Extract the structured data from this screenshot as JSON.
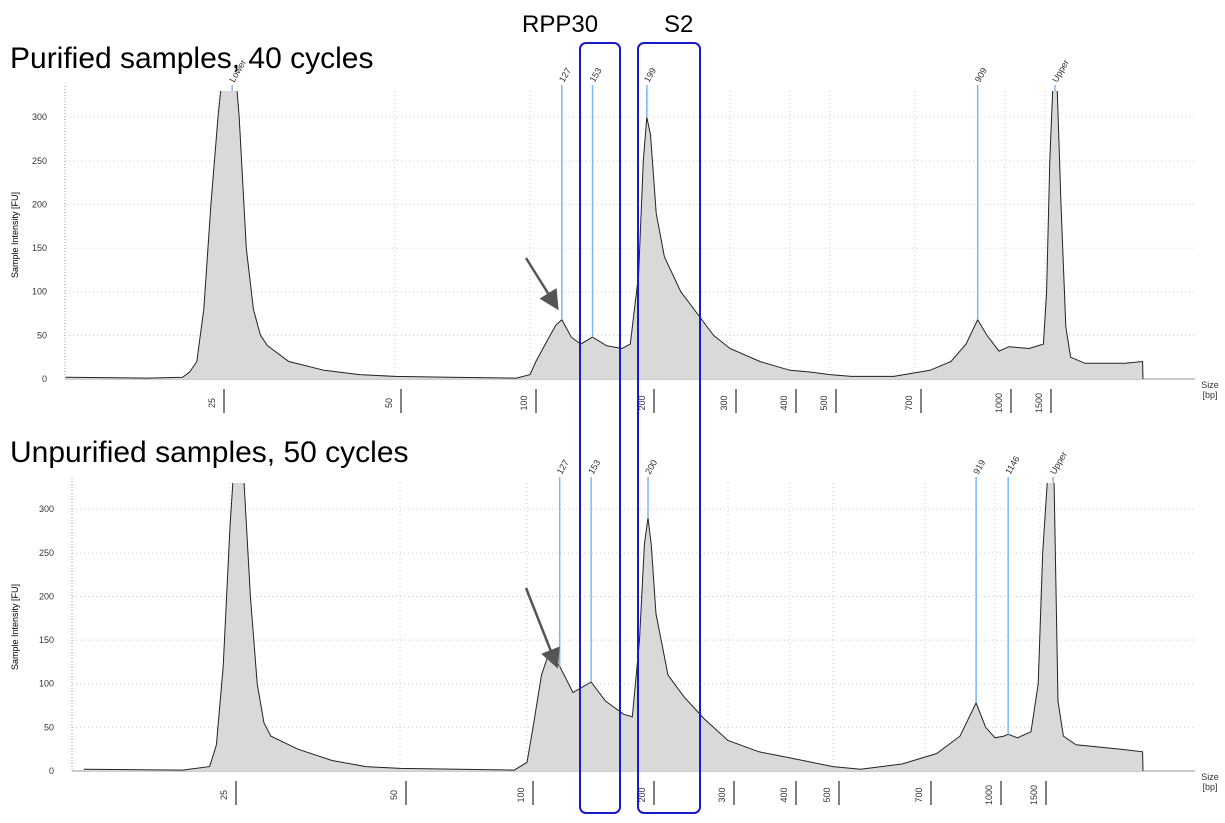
{
  "annotations": [
    "RPP30",
    "S2"
  ],
  "chart_data": [
    {
      "type": "area",
      "title": "Purified samples, 40 cycles",
      "y_label": "Sample Intensity [FU]",
      "x_label": [
        "Size",
        "[bp]"
      ],
      "ylim": [
        0,
        330
      ],
      "yticks": [
        0,
        50,
        100,
        150,
        200,
        250,
        300
      ],
      "xticks": [
        25,
        50,
        100,
        200,
        300,
        400,
        500,
        700,
        1000,
        1500
      ],
      "color": "#d9d9d9",
      "peak_color": "#7fb8f0",
      "grid": true,
      "peaks": [
        {
          "value": 27,
          "label": "Lower"
        },
        127,
        153,
        199,
        909,
        {
          "value": 1625,
          "label": "Upper"
        }
      ],
      "x": [
        3.5,
        15,
        20,
        21,
        22,
        23,
        24,
        25,
        26,
        27,
        28,
        29,
        30,
        31,
        32,
        35,
        40,
        45,
        50,
        70,
        95,
        100,
        105,
        115,
        122,
        127,
        135,
        143,
        153,
        165,
        178,
        185,
        192,
        196,
        199,
        203,
        210,
        220,
        240,
        260,
        280,
        300,
        350,
        400,
        450,
        500,
        550,
        650,
        750,
        820,
        870,
        909,
        940,
        980,
        1050,
        1300,
        1480,
        1520,
        1560,
        1600,
        1625,
        1650,
        1700,
        1760,
        1820,
        2000,
        2500,
        2720,
        2725
      ],
      "y": [
        2,
        1,
        2,
        8,
        20,
        80,
        200,
        300,
        380,
        400,
        300,
        150,
        80,
        50,
        38,
        20,
        10,
        5,
        3,
        2,
        1,
        5,
        20,
        45,
        62,
        68,
        48,
        40,
        48,
        38,
        35,
        40,
        120,
        250,
        300,
        280,
        190,
        140,
        100,
        75,
        50,
        35,
        20,
        10,
        8,
        5,
        3,
        3,
        10,
        20,
        40,
        68,
        50,
        32,
        37,
        35,
        40,
        100,
        250,
        340,
        400,
        340,
        200,
        60,
        25,
        18,
        18,
        20,
        0
      ]
    },
    {
      "type": "area",
      "title": "Unpurified samples, 50 cycles",
      "y_label": "Sample Intensity [FU]",
      "x_label": [
        "Size",
        "[bp]"
      ],
      "ylim": [
        0,
        330
      ],
      "yticks": [
        0,
        50,
        100,
        150,
        200,
        250,
        300
      ],
      "xticks": [
        25,
        50,
        100,
        200,
        300,
        400,
        500,
        700,
        1000,
        1500
      ],
      "color": "#d9d9d9",
      "peak_color": "#7fb8f0",
      "grid": true,
      "peaks": [
        127,
        153,
        200,
        919,
        1146,
        {
          "value": 1645,
          "label": "Upper"
        }
      ],
      "x": [
        3.5,
        18,
        22,
        23,
        24,
        25,
        26,
        27,
        28,
        29,
        30,
        31,
        35,
        40,
        45,
        50,
        95,
        100,
        105,
        112,
        118,
        127,
        138,
        153,
        165,
        180,
        187,
        193,
        197,
        200,
        204,
        210,
        225,
        245,
        270,
        300,
        350,
        400,
        450,
        500,
        560,
        650,
        750,
        850,
        919,
        960,
        1000,
        1100,
        1146,
        1250,
        1400,
        1480,
        1530,
        1580,
        1645,
        1700,
        1760,
        1900,
        2400,
        2640,
        2645
      ],
      "y": [
        2,
        1,
        5,
        30,
        120,
        280,
        400,
        340,
        200,
        100,
        55,
        40,
        25,
        12,
        5,
        3,
        1,
        10,
        50,
        110,
        135,
        120,
        90,
        102,
        80,
        65,
        62,
        150,
        260,
        290,
        260,
        180,
        110,
        85,
        60,
        35,
        22,
        15,
        10,
        5,
        2,
        8,
        20,
        40,
        78,
        50,
        38,
        40,
        42,
        38,
        45,
        100,
        250,
        330,
        400,
        80,
        40,
        30,
        25,
        22,
        0
      ]
    }
  ]
}
